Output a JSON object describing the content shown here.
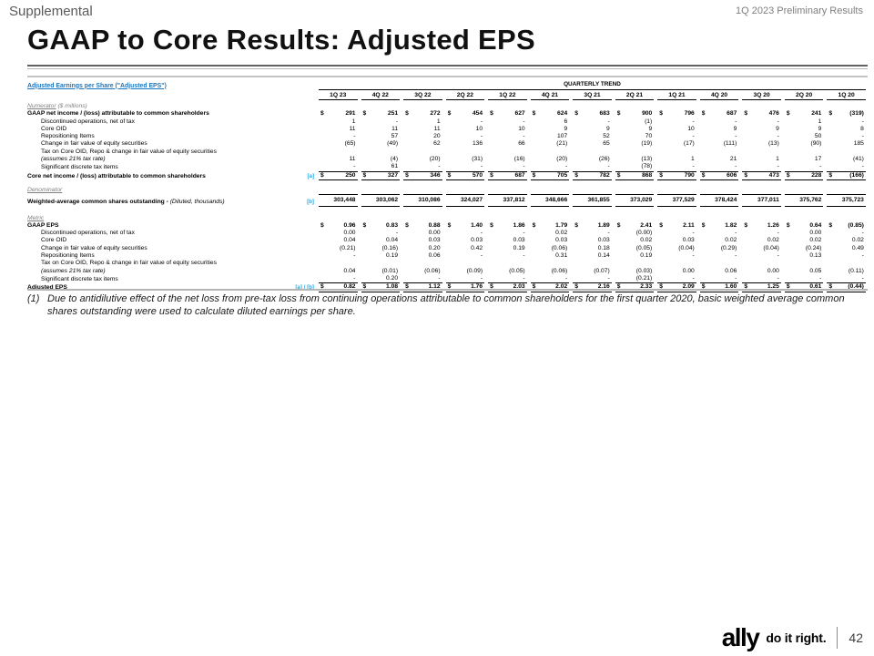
{
  "header": {
    "eyebrow": "Supplemental",
    "context": "1Q 2023 Preliminary Results",
    "title": "GAAP to Core Results: Adjusted EPS"
  },
  "table": {
    "link_title": "Adjusted Earnings per Share (\"Adjusted EPS\")",
    "trend_label": "QUARTERLY TREND",
    "columns": [
      "1Q 23",
      "4Q 22",
      "3Q 22",
      "2Q 22",
      "1Q 22",
      "4Q 21",
      "3Q 21",
      "2Q 21",
      "1Q 21",
      "4Q 20",
      "3Q 20",
      "2Q 20",
      "1Q 20"
    ],
    "rows": [
      {
        "type": "section",
        "label": "Numerator",
        "suffix": " ($ millions)"
      },
      {
        "type": "data",
        "label": "GAAP net income / (loss) attributable to common shareholders",
        "bold": true,
        "dollar": true,
        "values": [
          "291",
          "251",
          "272",
          "454",
          "627",
          "624",
          "683",
          "900",
          "796",
          "687",
          "476",
          "241",
          "(319)"
        ]
      },
      {
        "type": "data",
        "label": "Discontinued operations, net of tax",
        "indent": true,
        "values": [
          "1",
          "-",
          "1",
          "-",
          "-",
          "6",
          "-",
          "(1)",
          "-",
          "-",
          "-",
          "1",
          "-"
        ]
      },
      {
        "type": "data",
        "label": "Core OID",
        "indent": true,
        "values": [
          "11",
          "11",
          "11",
          "10",
          "10",
          "9",
          "9",
          "9",
          "10",
          "9",
          "9",
          "9",
          "8"
        ]
      },
      {
        "type": "data",
        "label": "Repositioning Items",
        "indent": true,
        "values": [
          "-",
          "57",
          "20",
          "-",
          "-",
          "107",
          "52",
          "70",
          "-",
          "-",
          "-",
          "50",
          "-"
        ]
      },
      {
        "type": "data",
        "label": "Change in fair value of equity securities",
        "indent": true,
        "values": [
          "(65)",
          "(49)",
          "62",
          "136",
          "66",
          "(21)",
          "65",
          "(19)",
          "(17)",
          "(111)",
          "(13)",
          "(90)",
          "185"
        ]
      },
      {
        "type": "data",
        "label": "Tax on Core OID, Repo & change in fair value of equity securities",
        "indent": true
      },
      {
        "type": "data",
        "label": "(assumes 21% tax rate)",
        "indent": true,
        "italic": true,
        "values": [
          "11",
          "(4)",
          "(20)",
          "(31)",
          "(16)",
          "(20)",
          "(26)",
          "(13)",
          "1",
          "21",
          "1",
          "17",
          "(41)"
        ]
      },
      {
        "type": "data",
        "label": "Significant discrete tax items",
        "indent": true,
        "rule": "below",
        "values": [
          "-",
          "61",
          "-",
          "-",
          "-",
          "-",
          "-",
          "(78)",
          "-",
          "-",
          "-",
          "-",
          "-"
        ]
      },
      {
        "type": "data",
        "label": "Core net income / (loss) attributable to common shareholders",
        "bold": true,
        "marker": "[a]",
        "dollar": true,
        "rule": "total",
        "values": [
          "250",
          "327",
          "346",
          "570",
          "687",
          "705",
          "782",
          "868",
          "790",
          "606",
          "473",
          "228",
          "(166)"
        ]
      },
      {
        "type": "gap",
        "h": 6
      },
      {
        "type": "section",
        "label": "Denominator"
      },
      {
        "type": "data",
        "label": "Weighted-average common shares outstanding - ",
        "label2": "(Diluted, thousands)",
        "bold": true,
        "marker": "[b]",
        "rule": "both",
        "values": [
          "303,448",
          "303,062",
          "310,086",
          "324,027",
          "337,812",
          "348,666",
          "361,855",
          "373,029",
          "377,529",
          "378,424",
          "377,011",
          "375,762",
          "375,723"
        ]
      },
      {
        "type": "gap",
        "h": 8
      },
      {
        "type": "section",
        "label": "Metric"
      },
      {
        "type": "data",
        "label": "GAAP EPS",
        "bold": true,
        "dollar": true,
        "values": [
          "0.96",
          "0.83",
          "0.88",
          "1.40",
          "1.86",
          "1.79",
          "1.89",
          "2.41",
          "2.11",
          "1.82",
          "1.26",
          "0.64",
          "(0.85)"
        ]
      },
      {
        "type": "data",
        "label": "Discontinued operations, net of tax",
        "indent": true,
        "values": [
          "0.00",
          "-",
          "0.00",
          "-",
          "-",
          "0.02",
          "-",
          "(0.00)",
          "-",
          "-",
          "-",
          "0.00",
          "-"
        ]
      },
      {
        "type": "data",
        "label": "Core OID",
        "indent": true,
        "values": [
          "0.04",
          "0.04",
          "0.03",
          "0.03",
          "0.03",
          "0.03",
          "0.03",
          "0.02",
          "0.03",
          "0.02",
          "0.02",
          "0.02",
          "0.02"
        ]
      },
      {
        "type": "data",
        "label": "Change in fair value of equity securities",
        "indent": true,
        "values": [
          "(0.21)",
          "(0.16)",
          "0.20",
          "0.42",
          "0.19",
          "(0.06)",
          "0.18",
          "(0.05)",
          "(0.04)",
          "(0.29)",
          "(0.04)",
          "(0.24)",
          "0.49"
        ]
      },
      {
        "type": "data",
        "label": "Repositioning Items",
        "indent": true,
        "values": [
          "-",
          "0.19",
          "0.06",
          "-",
          "-",
          "0.31",
          "0.14",
          "0.19",
          "-",
          "-",
          "-",
          "0.13",
          "-"
        ]
      },
      {
        "type": "data",
        "label": "Tax on Core OID, Repo & change in fair value of equity securities",
        "indent": true
      },
      {
        "type": "data",
        "label": "(assumes 21% tax rate)",
        "indent": true,
        "italic": true,
        "values": [
          "0.04",
          "(0.01)",
          "(0.06)",
          "(0.09)",
          "(0.05)",
          "(0.06)",
          "(0.07)",
          "(0.03)",
          "0.00",
          "0.06",
          "0.00",
          "0.05",
          "(0.11)"
        ]
      },
      {
        "type": "data",
        "label": "Significant discrete tax items",
        "indent": true,
        "rule": "below",
        "values": [
          "-",
          "0.20",
          "-",
          "-",
          "-",
          "-",
          "-",
          "(0.21)",
          "-",
          "-",
          "-",
          "-",
          "-"
        ]
      },
      {
        "type": "data",
        "label": "Adjusted EPS",
        "bold": true,
        "marker": "[a] / [b]",
        "dollar": true,
        "rule": "total",
        "values": [
          "0.82",
          "1.08",
          "1.12",
          "1.76",
          "2.03",
          "2.02",
          "2.16",
          "2.33",
          "2.09",
          "1.60",
          "1.25",
          "0.61",
          "(0.44)"
        ]
      }
    ]
  },
  "footnote": {
    "marker": "(1)",
    "text": "Due to antidilutive effect of the net loss from pre-tax loss from continuing operations attributable to common shareholders for the first quarter 2020, basic weighted average common shares outstanding were used to calculate diluted earnings per share."
  },
  "footer": {
    "logo": "ally",
    "tagline": "do it right.",
    "page": "42"
  },
  "colors": {
    "link_blue": "#1B75BC",
    "marker_blue": "#27AAE1",
    "section_gray": "#808080"
  }
}
